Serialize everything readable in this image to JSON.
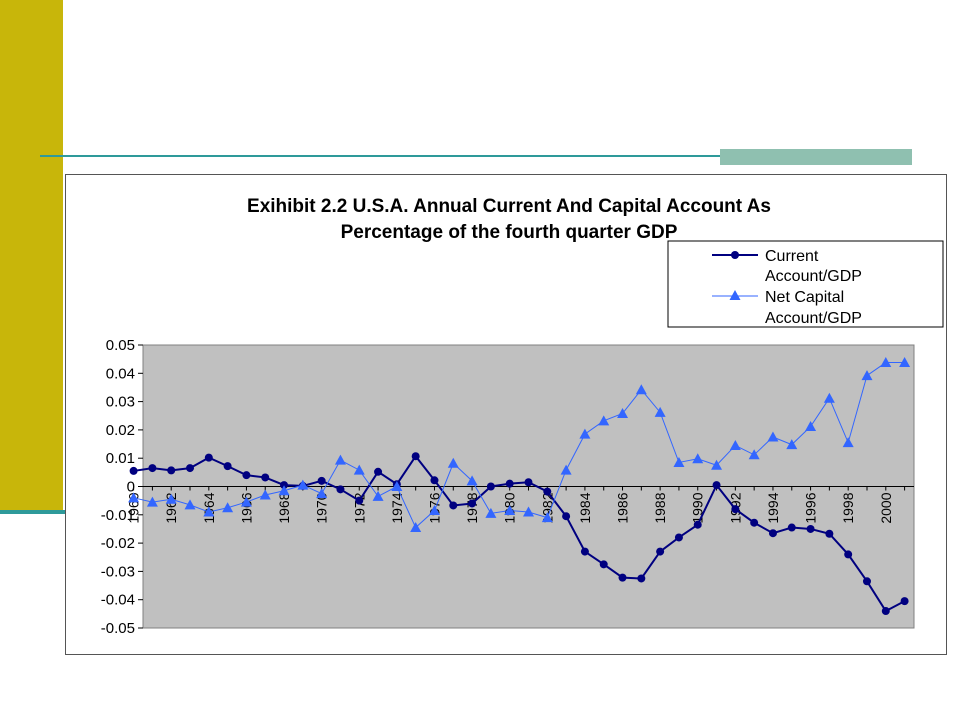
{
  "colors": {
    "side_bar": "#C8B60A",
    "rule": "#2E9A9A",
    "accent": "#8FC0B0",
    "plot_bg": "#C0C0C0",
    "current_series": "#000080",
    "capital_series": "#3366FF"
  },
  "chart_data": {
    "type": "line",
    "title_line1": "Exihibit 2.2 U.S.A. Annual Current And Capital Account As",
    "title_line2": "Percentage of the fourth quarter GDP",
    "xlabel": "",
    "ylabel": "",
    "ylim": [
      -0.05,
      0.05
    ],
    "yticks": [
      "0.05",
      "0.04",
      "0.03",
      "0.02",
      "0.01",
      "0",
      "-0.01",
      "-0.02",
      "-0.03",
      "-0.04",
      "-0.05"
    ],
    "ytick_values": [
      0.05,
      0.04,
      0.03,
      0.02,
      0.01,
      0,
      -0.01,
      -0.02,
      -0.03,
      -0.04,
      -0.05
    ],
    "grid": false,
    "legend_position": "top-right",
    "x": [
      1960,
      1961,
      1962,
      1963,
      1964,
      1965,
      1966,
      1967,
      1968,
      1969,
      1970,
      1971,
      1972,
      1973,
      1974,
      1975,
      1976,
      1977,
      1978,
      1979,
      1980,
      1981,
      1982,
      1983,
      1984,
      1985,
      1986,
      1987,
      1988,
      1989,
      1990,
      1991,
      1992,
      1993,
      1994,
      1995,
      1996,
      1997,
      1998,
      1999,
      2000,
      2001
    ],
    "xtick_labels": [
      "1960",
      "1962",
      "1964",
      "1966",
      "1968",
      "1970",
      "1972",
      "1974",
      "1976",
      "1978",
      "1980",
      "1982",
      "1984",
      "1986",
      "1988",
      "1990",
      "1992",
      "1994",
      "1996",
      "1998",
      "2000"
    ],
    "series": [
      {
        "name": "Current Account/GDP",
        "legend_line1": "Current",
        "legend_line2": "Account/GDP",
        "marker": "circle",
        "values": [
          0.0055,
          0.0065,
          0.0057,
          0.0065,
          0.0102,
          0.0072,
          0.004,
          0.0032,
          0.0005,
          0.0002,
          0.002,
          -0.001,
          -0.005,
          0.0052,
          0.0008,
          0.0107,
          0.0022,
          -0.0067,
          -0.006,
          0.0,
          0.001,
          0.0015,
          -0.0018,
          -0.0105,
          -0.023,
          -0.0275,
          -0.0322,
          -0.0325,
          -0.023,
          -0.018,
          -0.0135,
          0.0005,
          -0.008,
          -0.0128,
          -0.0165,
          -0.0145,
          -0.015,
          -0.0167,
          -0.024,
          -0.0335,
          -0.044,
          -0.0405
        ]
      },
      {
        "name": "Net Capital Account/GDP",
        "legend_line1": "Net Capital",
        "legend_line2": "Account/GDP",
        "marker": "triangle",
        "values": [
          -0.004,
          -0.0055,
          -0.0045,
          -0.0065,
          -0.009,
          -0.0075,
          -0.0055,
          -0.003,
          -0.0015,
          0.0005,
          -0.0025,
          0.0093,
          0.0058,
          -0.0035,
          0.0,
          -0.0145,
          -0.0085,
          0.0082,
          0.002,
          -0.0095,
          -0.0085,
          -0.009,
          -0.011,
          0.0058,
          0.0185,
          0.0232,
          0.0258,
          0.0342,
          0.0262,
          0.0085,
          0.0098,
          0.0075,
          0.0145,
          0.0112,
          0.0175,
          0.0148,
          0.0212,
          0.0312,
          0.0155,
          0.0392,
          0.0438,
          0.0438
        ]
      }
    ]
  }
}
